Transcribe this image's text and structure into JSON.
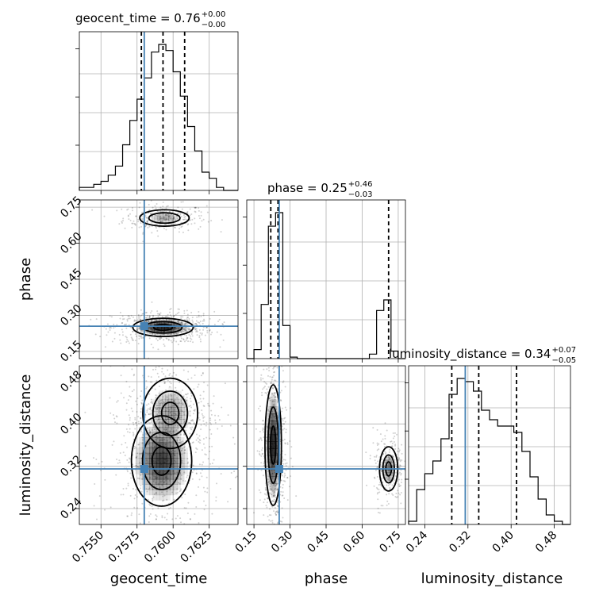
{
  "chart_data": {
    "type": "corner",
    "parameters": [
      "geocent_time",
      "phase",
      "luminosity_distance"
    ],
    "axis_labels": [
      "geocent_time",
      "phase",
      "luminosity_distance"
    ],
    "ranges": {
      "geocent_time": [
        0.7535,
        0.7645
      ],
      "phase": [
        0.12,
        0.78
      ],
      "luminosity_distance": [
        0.21,
        0.51
      ]
    },
    "ticks": {
      "geocent_time": [
        "0.7550",
        "0.7575",
        "0.7600",
        "0.7625"
      ],
      "phase": [
        "0.15",
        "0.30",
        "0.45",
        "0.60",
        "0.75"
      ],
      "luminosity_distance": [
        "0.24",
        "0.32",
        "0.40",
        "0.48"
      ]
    },
    "truths": {
      "geocent_time": 0.758,
      "phase": 0.255,
      "luminosity_distance": 0.315
    },
    "titles": [
      {
        "param": "geocent_time",
        "text": "geocent_time = 0.76",
        "plus": "+0.00",
        "minus": "−0.00"
      },
      {
        "param": "phase",
        "text": "phase = 0.25",
        "plus": "+0.46",
        "minus": "−0.03"
      },
      {
        "param": "luminosity_distance",
        "text": "luminosity_distance = 0.34",
        "plus": "+0.07",
        "minus": "−0.05"
      }
    ],
    "quantiles": {
      "geocent_time": [
        0.7578,
        0.7593,
        0.7608
      ],
      "phase": [
        0.22,
        0.25,
        0.71
      ],
      "luminosity_distance": [
        0.29,
        0.34,
        0.41
      ]
    },
    "histograms": {
      "geocent_time": {
        "bins": [
          0.7535,
          0.754,
          0.7545,
          0.755,
          0.7555,
          0.756,
          0.7565,
          0.757,
          0.7575,
          0.758,
          0.7585,
          0.759,
          0.7595,
          0.76,
          0.7605,
          0.761,
          0.7615,
          0.762,
          0.7625,
          0.763,
          0.7635,
          0.764,
          0.7645
        ],
        "counts": [
          2,
          2,
          4,
          6,
          10,
          16,
          30,
          46,
          60,
          74,
          91,
          96,
          92,
          78,
          62,
          42,
          26,
          12,
          8,
          2,
          0,
          0
        ]
      },
      "phase": {
        "bins": [
          0.12,
          0.15,
          0.18,
          0.21,
          0.24,
          0.27,
          0.3,
          0.33,
          0.36,
          0.39,
          0.42,
          0.45,
          0.48,
          0.51,
          0.54,
          0.57,
          0.6,
          0.63,
          0.66,
          0.69,
          0.72,
          0.75,
          0.78
        ],
        "counts": [
          0,
          6,
          36,
          88,
          97,
          22,
          1,
          0,
          0,
          0,
          0,
          0,
          0,
          0,
          0,
          0,
          0,
          3,
          32,
          39,
          5,
          0
        ]
      },
      "luminosity_distance": {
        "bins": [
          0.21,
          0.225,
          0.24,
          0.255,
          0.27,
          0.285,
          0.3,
          0.315,
          0.33,
          0.345,
          0.36,
          0.375,
          0.39,
          0.405,
          0.42,
          0.435,
          0.45,
          0.465,
          0.48,
          0.495,
          0.51
        ],
        "counts": [
          2,
          22,
          32,
          40,
          54,
          82,
          92,
          90,
          84,
          72,
          66,
          62,
          62,
          58,
          46,
          30,
          16,
          6,
          2,
          0
        ]
      }
    },
    "density_2d": [
      {
        "x": "geocent_time",
        "y": "phase",
        "modes": [
          {
            "cx": 0.7594,
            "cy": 0.705,
            "sx": 0.0009,
            "sy": 0.018,
            "w": 0.45,
            "n": 280
          },
          {
            "cx": 0.7593,
            "cy": 0.25,
            "sx": 0.0011,
            "sy": 0.02,
            "w": 1.0,
            "n": 620
          }
        ]
      },
      {
        "x": "geocent_time",
        "y": "luminosity_distance",
        "modes": [
          {
            "cx": 0.7592,
            "cy": 0.33,
            "sx": 0.0011,
            "sy": 0.045,
            "w": 1.0,
            "n": 620
          },
          {
            "cx": 0.7598,
            "cy": 0.42,
            "sx": 0.001,
            "sy": 0.035,
            "w": 0.6,
            "n": 380
          }
        ]
      },
      {
        "x": "phase",
        "y": "luminosity_distance",
        "modes": [
          {
            "cx": 0.23,
            "cy": 0.36,
            "sx": 0.018,
            "sy": 0.06,
            "w": 1.0,
            "n": 600
          },
          {
            "cx": 0.71,
            "cy": 0.315,
            "sx": 0.02,
            "sy": 0.022,
            "w": 0.55,
            "n": 280
          }
        ]
      }
    ],
    "truth_color": "#4682b4",
    "grid": true
  }
}
